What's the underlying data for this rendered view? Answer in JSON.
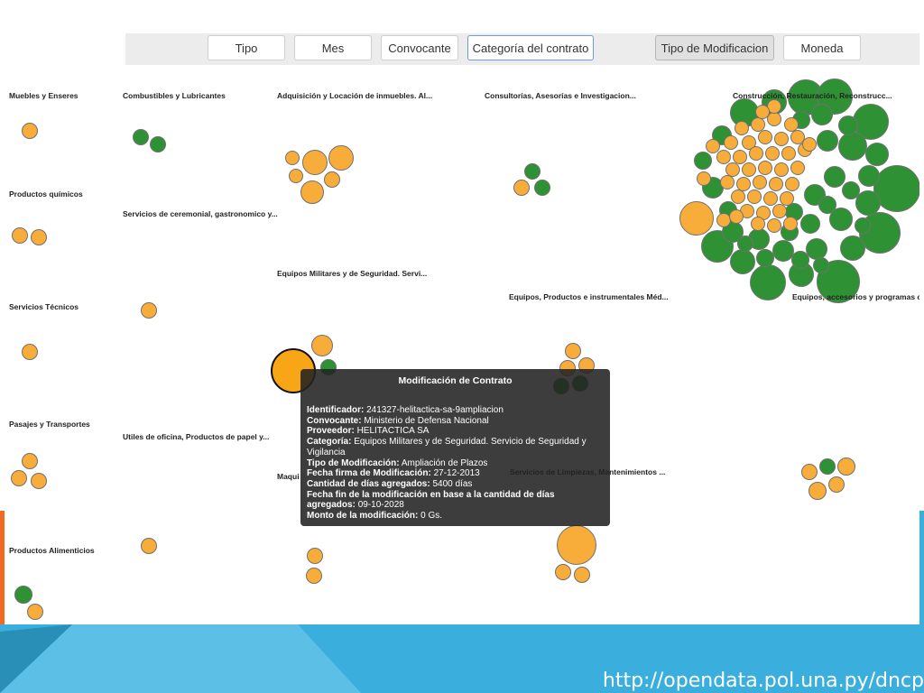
{
  "toolbar": {
    "buttons": [
      {
        "label": "Tipo",
        "state": "normal"
      },
      {
        "label": "Mes",
        "state": "normal"
      },
      {
        "label": "Convocante",
        "state": "normal"
      },
      {
        "label": "Categoría del contrato",
        "state": "focused"
      },
      {
        "label": "Tipo de Modificacion",
        "state": "active"
      },
      {
        "label": "Moneda",
        "state": "normal"
      }
    ]
  },
  "groups": [
    "Muebles y Enseres",
    "Combustibles y Lubricantes",
    "Adquisición y Locación de inmuebles. Al...",
    "Consultorías, Asesorías e Investigacion...",
    "Construcción, Restauración, Reconstrucc...",
    "Productos químicos",
    "Servicios de ceremonial, gastronomico y...",
    "Equipos Militares y de Seguridad. Servi...",
    "Servicios Técnicos",
    "Equipos, Productos e instrumentales Méd...",
    "Equipos, accesorios y programas co",
    "Pasajes y Transportes",
    "Utiles de oficina, Productos de papel y...",
    "Maqui",
    "Servicios de Limpiezas, Mantenimientos ...",
    "Productos Alimenticios"
  ],
  "colors": {
    "orange": "#f8ad3a",
    "green": "#2e9235",
    "highlight": "#f8a516",
    "tooltip_bg": "#222222",
    "slide_orange": "#f26a21",
    "slide_blue": "#3aaedc"
  },
  "tooltip": {
    "title": "Modificación de Contrato",
    "rows": [
      {
        "label": "Identificador:",
        "value": "241327-helitactica-sa-9ampliacion"
      },
      {
        "label": "Convocante:",
        "value": "Ministerio de Defensa Nacional"
      },
      {
        "label": "Proveedor:",
        "value": "HELITACTICA SA"
      },
      {
        "label": "Categoría:",
        "value": "Equipos Militares y de Seguridad. Servicio de Seguridad y Vigilancia"
      },
      {
        "label": "Tipo de Modificación:",
        "value": "Ampliación de Plazos"
      },
      {
        "label": "Fecha firma de Modificación:",
        "value": "27-12-2013"
      },
      {
        "label": "Cantidad de días agregados:",
        "value": "5400 días"
      },
      {
        "label": "Fecha fin de la modificación en base a la cantidad de días agregados:",
        "value": "09-10-2028"
      },
      {
        "label": "Monto de la modificación:",
        "value": "0 Gs."
      }
    ]
  },
  "footer": {
    "url": "http://opendata.pol.una.py/dncp"
  }
}
